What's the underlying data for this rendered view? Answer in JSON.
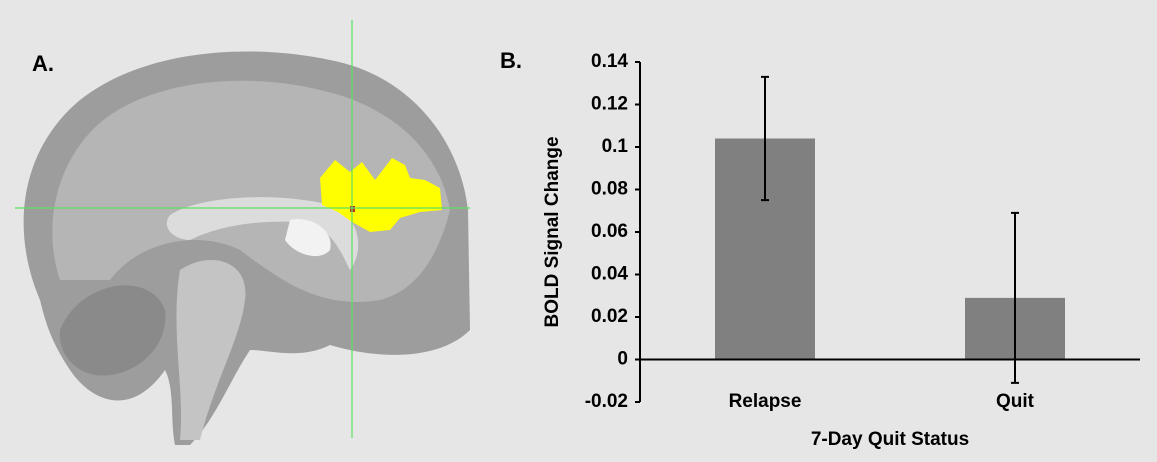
{
  "panel_labels": [
    "A.",
    "B."
  ],
  "chart_data": {
    "type": "bar",
    "categories": [
      "Relapse",
      "Quit"
    ],
    "values": [
      0.104,
      0.029
    ],
    "errors": [
      0.029,
      0.04
    ],
    "color": "#808080",
    "xlabel": "7-Day Quit Status",
    "ylabel": "BOLD Signal Change",
    "ylim": [
      -0.02,
      0.14
    ],
    "yticks": [
      -0.02,
      0,
      0.02,
      0.04,
      0.06,
      0.08,
      0.1,
      0.12,
      0.14
    ],
    "grid": false
  }
}
